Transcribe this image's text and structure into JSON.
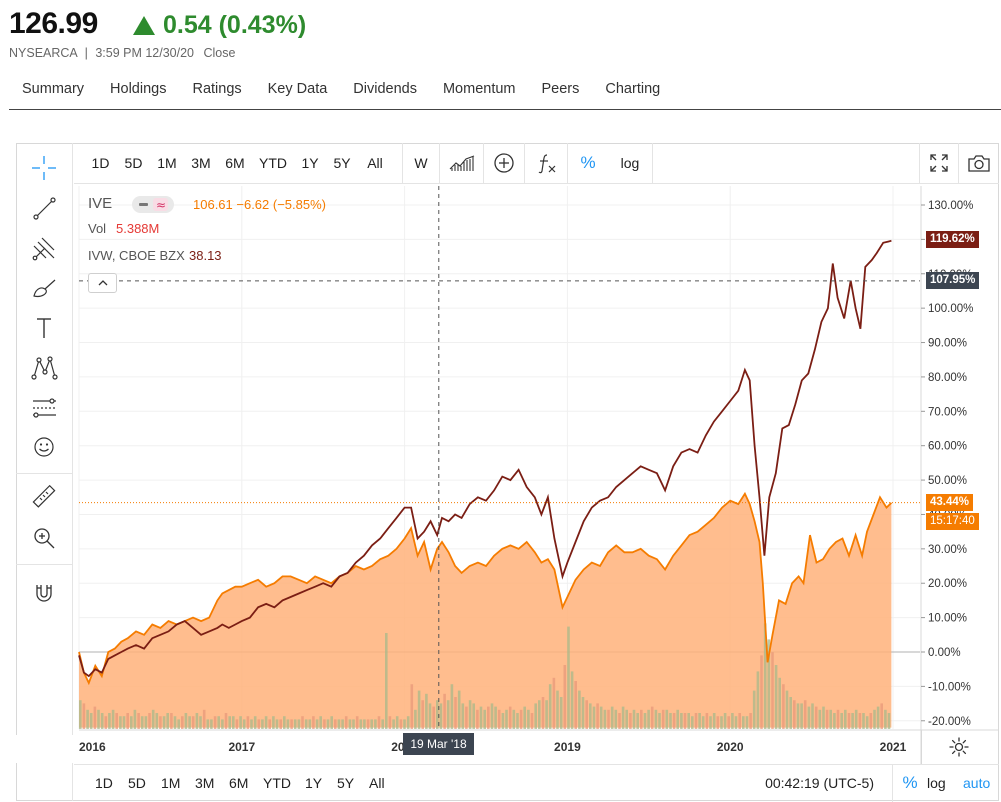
{
  "quote": {
    "price": "126.99",
    "change": "0.54 (0.43%)",
    "exchange": "NYSEARCA",
    "separator": "|",
    "time": "3:59 PM 12/30/20",
    "status": "Close"
  },
  "nav": {
    "tabs": [
      "Summary",
      "Holdings",
      "Ratings",
      "Key Data",
      "Dividends",
      "Momentum",
      "Peers",
      "Charting"
    ]
  },
  "toolbar": {
    "ranges": [
      "1D",
      "5D",
      "1M",
      "3M",
      "6M",
      "YTD",
      "1Y",
      "5Y",
      "All"
    ],
    "interval": "W",
    "percent": "%",
    "log": "log"
  },
  "bottom_toolbar": {
    "ranges": [
      "1D",
      "5D",
      "1M",
      "3M",
      "6M",
      "YTD",
      "1Y",
      "5Y",
      "All"
    ],
    "clock": "00:42:19 (UTC-5)",
    "percent": "%",
    "log": "log",
    "auto": "auto"
  },
  "legend": {
    "symbol": "IVE",
    "ohlc": "106.61 −6.62 (−5.85%)",
    "vol_label": "Vol",
    "vol_value": "5.388M",
    "compare_label": "IVW, CBOE BZX",
    "compare_value": "38.13"
  },
  "labels": {
    "ivw_last": "119.62%",
    "crosshair_y": "107.95%",
    "ive_last": "43.44%",
    "countdown": "15:17:40",
    "crosshair_x": "19 Mar '18"
  },
  "colors": {
    "ive": "#f57c00",
    "ive_fill": "#ffb27a",
    "ivw": "#7b1e14",
    "up": "#2e8b2e",
    "accent": "#2196f3",
    "crosshair_label": "#3c4551"
  },
  "chart_data": {
    "type": "area",
    "ylim": [
      -22,
      135
    ],
    "y_ticks": [
      "130.00%",
      "120.00%",
      "110.00%",
      "100.00%",
      "90.00%",
      "80.00%",
      "70.00%",
      "60.00%",
      "50.00%",
      "40.00%",
      "30.00%",
      "20.00%",
      "10.00%",
      "0.00%",
      "-10.00%",
      "-20.00%"
    ],
    "x_ticks": [
      {
        "t": 2016.0,
        "label": "2016"
      },
      {
        "t": 2017.0,
        "label": "2017"
      },
      {
        "t": 2018.0,
        "label": "2018"
      },
      {
        "t": 2019.0,
        "label": "2019"
      },
      {
        "t": 2020.0,
        "label": "2020"
      },
      {
        "t": 2021.0,
        "label": "2021"
      }
    ],
    "series": [
      {
        "name": "IVE",
        "style": "area",
        "points": [
          [
            2016.0,
            0
          ],
          [
            2016.03,
            -6
          ],
          [
            2016.06,
            -9
          ],
          [
            2016.1,
            -4
          ],
          [
            2016.14,
            -7
          ],
          [
            2016.18,
            0
          ],
          [
            2016.22,
            1
          ],
          [
            2016.26,
            3
          ],
          [
            2016.3,
            4
          ],
          [
            2016.35,
            6
          ],
          [
            2016.4,
            5
          ],
          [
            2016.45,
            8
          ],
          [
            2016.5,
            7
          ],
          [
            2016.55,
            9
          ],
          [
            2016.6,
            8
          ],
          [
            2016.65,
            9
          ],
          [
            2016.7,
            10
          ],
          [
            2016.75,
            9
          ],
          [
            2016.8,
            10
          ],
          [
            2016.85,
            15
          ],
          [
            2016.88,
            17
          ],
          [
            2016.92,
            18
          ],
          [
            2016.96,
            19
          ],
          [
            2017.0,
            19
          ],
          [
            2017.05,
            20
          ],
          [
            2017.1,
            21
          ],
          [
            2017.15,
            19
          ],
          [
            2017.2,
            20
          ],
          [
            2017.25,
            22
          ],
          [
            2017.3,
            22
          ],
          [
            2017.35,
            21
          ],
          [
            2017.4,
            20
          ],
          [
            2017.45,
            22
          ],
          [
            2017.5,
            21
          ],
          [
            2017.55,
            20
          ],
          [
            2017.6,
            22
          ],
          [
            2017.65,
            23
          ],
          [
            2017.7,
            25
          ],
          [
            2017.75,
            24
          ],
          [
            2017.8,
            25
          ],
          [
            2017.85,
            27
          ],
          [
            2017.9,
            28
          ],
          [
            2017.95,
            30
          ],
          [
            2018.0,
            33
          ],
          [
            2018.04,
            36
          ],
          [
            2018.08,
            28
          ],
          [
            2018.12,
            32
          ],
          [
            2018.16,
            24
          ],
          [
            2018.2,
            30
          ],
          [
            2018.23,
            32
          ],
          [
            2018.27,
            29
          ],
          [
            2018.31,
            25
          ],
          [
            2018.35,
            23
          ],
          [
            2018.4,
            25
          ],
          [
            2018.45,
            26
          ],
          [
            2018.5,
            25
          ],
          [
            2018.55,
            28
          ],
          [
            2018.6,
            30
          ],
          [
            2018.65,
            31
          ],
          [
            2018.7,
            30
          ],
          [
            2018.75,
            32
          ],
          [
            2018.8,
            29
          ],
          [
            2018.84,
            26
          ],
          [
            2018.88,
            27
          ],
          [
            2018.92,
            24
          ],
          [
            2018.97,
            13
          ],
          [
            2019.0,
            16
          ],
          [
            2019.05,
            21
          ],
          [
            2019.1,
            24
          ],
          [
            2019.15,
            26
          ],
          [
            2019.2,
            25
          ],
          [
            2019.25,
            29
          ],
          [
            2019.3,
            31
          ],
          [
            2019.35,
            29
          ],
          [
            2019.4,
            29
          ],
          [
            2019.45,
            30
          ],
          [
            2019.5,
            28
          ],
          [
            2019.55,
            27
          ],
          [
            2019.6,
            24
          ],
          [
            2019.65,
            28
          ],
          [
            2019.7,
            31
          ],
          [
            2019.75,
            34
          ],
          [
            2019.8,
            35
          ],
          [
            2019.85,
            37
          ],
          [
            2019.9,
            39
          ],
          [
            2019.95,
            42
          ],
          [
            2020.0,
            44
          ],
          [
            2020.05,
            43
          ],
          [
            2020.09,
            46
          ],
          [
            2020.12,
            43
          ],
          [
            2020.15,
            38
          ],
          [
            2020.18,
            32
          ],
          [
            2020.2,
            20
          ],
          [
            2020.23,
            -3
          ],
          [
            2020.26,
            5
          ],
          [
            2020.3,
            15
          ],
          [
            2020.34,
            14
          ],
          [
            2020.38,
            20
          ],
          [
            2020.42,
            22
          ],
          [
            2020.45,
            20
          ],
          [
            2020.49,
            34
          ],
          [
            2020.53,
            26
          ],
          [
            2020.57,
            27
          ],
          [
            2020.61,
            30
          ],
          [
            2020.65,
            32
          ],
          [
            2020.69,
            33
          ],
          [
            2020.73,
            28
          ],
          [
            2020.77,
            34
          ],
          [
            2020.81,
            28
          ],
          [
            2020.84,
            35
          ],
          [
            2020.88,
            40
          ],
          [
            2020.92,
            45
          ],
          [
            2020.96,
            42
          ],
          [
            2020.99,
            43.4
          ]
        ]
      },
      {
        "name": "IVW",
        "style": "line",
        "points": [
          [
            2016.0,
            -1
          ],
          [
            2016.03,
            -6
          ],
          [
            2016.06,
            -7
          ],
          [
            2016.1,
            -5
          ],
          [
            2016.14,
            -6
          ],
          [
            2016.18,
            -2
          ],
          [
            2016.22,
            -1
          ],
          [
            2016.26,
            0
          ],
          [
            2016.3,
            1
          ],
          [
            2016.35,
            2
          ],
          [
            2016.4,
            1
          ],
          [
            2016.45,
            4
          ],
          [
            2016.5,
            5
          ],
          [
            2016.55,
            6
          ],
          [
            2016.6,
            8
          ],
          [
            2016.65,
            9
          ],
          [
            2016.7,
            7
          ],
          [
            2016.75,
            5
          ],
          [
            2016.8,
            6
          ],
          [
            2016.85,
            7
          ],
          [
            2016.88,
            8
          ],
          [
            2016.92,
            7
          ],
          [
            2016.96,
            8
          ],
          [
            2017.0,
            9
          ],
          [
            2017.05,
            10
          ],
          [
            2017.1,
            13
          ],
          [
            2017.15,
            14
          ],
          [
            2017.2,
            13
          ],
          [
            2017.25,
            15
          ],
          [
            2017.3,
            16
          ],
          [
            2017.35,
            17
          ],
          [
            2017.4,
            18
          ],
          [
            2017.45,
            19
          ],
          [
            2017.5,
            20
          ],
          [
            2017.55,
            19
          ],
          [
            2017.6,
            22
          ],
          [
            2017.65,
            23
          ],
          [
            2017.7,
            26
          ],
          [
            2017.75,
            28
          ],
          [
            2017.8,
            31
          ],
          [
            2017.85,
            33
          ],
          [
            2017.9,
            36
          ],
          [
            2017.95,
            39
          ],
          [
            2018.0,
            42
          ],
          [
            2018.04,
            42
          ],
          [
            2018.08,
            33
          ],
          [
            2018.12,
            35
          ],
          [
            2018.16,
            38
          ],
          [
            2018.2,
            34
          ],
          [
            2018.23,
            39
          ],
          [
            2018.27,
            38
          ],
          [
            2018.31,
            40
          ],
          [
            2018.35,
            39
          ],
          [
            2018.4,
            43
          ],
          [
            2018.45,
            45
          ],
          [
            2018.5,
            44
          ],
          [
            2018.55,
            47
          ],
          [
            2018.6,
            51
          ],
          [
            2018.65,
            50
          ],
          [
            2018.7,
            53
          ],
          [
            2018.75,
            48
          ],
          [
            2018.8,
            45
          ],
          [
            2018.84,
            40
          ],
          [
            2018.88,
            45
          ],
          [
            2018.92,
            33
          ],
          [
            2018.97,
            22
          ],
          [
            2019.0,
            26
          ],
          [
            2019.05,
            32
          ],
          [
            2019.1,
            38
          ],
          [
            2019.15,
            42
          ],
          [
            2019.2,
            44
          ],
          [
            2019.25,
            45
          ],
          [
            2019.3,
            48
          ],
          [
            2019.35,
            50
          ],
          [
            2019.4,
            52
          ],
          [
            2019.45,
            54
          ],
          [
            2019.5,
            53
          ],
          [
            2019.55,
            52
          ],
          [
            2019.6,
            47
          ],
          [
            2019.65,
            54
          ],
          [
            2019.7,
            58
          ],
          [
            2019.75,
            59
          ],
          [
            2019.8,
            58
          ],
          [
            2019.85,
            63
          ],
          [
            2019.9,
            67
          ],
          [
            2019.95,
            70
          ],
          [
            2020.0,
            73
          ],
          [
            2020.05,
            76
          ],
          [
            2020.09,
            82
          ],
          [
            2020.12,
            79
          ],
          [
            2020.15,
            60
          ],
          [
            2020.18,
            45
          ],
          [
            2020.21,
            28
          ],
          [
            2020.24,
            45
          ],
          [
            2020.28,
            52
          ],
          [
            2020.32,
            65
          ],
          [
            2020.36,
            66
          ],
          [
            2020.4,
            72
          ],
          [
            2020.44,
            79
          ],
          [
            2020.48,
            81
          ],
          [
            2020.52,
            88
          ],
          [
            2020.56,
            96
          ],
          [
            2020.6,
            100
          ],
          [
            2020.63,
            113
          ],
          [
            2020.66,
            103
          ],
          [
            2020.7,
            97
          ],
          [
            2020.74,
            108
          ],
          [
            2020.77,
            100
          ],
          [
            2020.8,
            94
          ],
          [
            2020.83,
            112
          ],
          [
            2020.87,
            114
          ],
          [
            2020.9,
            116
          ],
          [
            2020.94,
            119
          ],
          [
            2020.99,
            119.6
          ]
        ]
      }
    ],
    "volume": [
      9,
      8,
      6,
      5,
      7,
      6,
      5,
      4,
      5,
      6,
      5,
      4,
      4,
      5,
      4,
      6,
      5,
      4,
      4,
      5,
      6,
      5,
      4,
      4,
      5,
      5,
      4,
      3,
      4,
      5,
      4,
      4,
      5,
      4,
      6,
      3,
      3,
      4,
      4,
      3,
      5,
      4,
      4,
      3,
      4,
      3,
      4,
      3,
      4,
      3,
      3,
      4,
      3,
      4,
      3,
      3,
      4,
      3,
      3,
      3,
      3,
      4,
      3,
      3,
      4,
      3,
      4,
      3,
      3,
      4,
      3,
      3,
      3,
      4,
      3,
      3,
      4,
      3,
      3,
      3,
      3,
      3,
      4,
      3,
      30,
      4,
      3,
      4,
      3,
      3,
      4,
      14,
      6,
      12,
      9,
      11,
      8,
      7,
      9,
      8,
      11,
      9,
      14,
      10,
      12,
      8,
      7,
      9,
      8,
      6,
      7,
      6,
      7,
      8,
      7,
      6,
      5,
      6,
      7,
      6,
      5,
      6,
      7,
      6,
      5,
      8,
      9,
      10,
      9,
      14,
      16,
      12,
      10,
      20,
      32,
      18,
      15,
      12,
      10,
      9,
      8,
      7,
      8,
      7,
      6,
      6,
      7,
      6,
      5,
      7,
      6,
      5,
      6,
      5,
      6,
      5,
      6,
      7,
      6,
      5,
      6,
      6,
      5,
      5,
      6,
      5,
      5,
      5,
      4,
      5,
      5,
      4,
      5,
      4,
      5,
      4,
      4,
      5,
      4,
      5,
      4,
      5,
      4,
      4,
      5,
      12,
      18,
      23,
      33,
      28,
      24,
      20,
      16,
      14,
      12,
      10,
      9,
      8,
      8,
      9,
      7,
      8,
      7,
      6,
      7,
      6,
      6,
      5,
      6,
      5,
      6,
      5,
      5,
      6,
      5,
      5,
      4,
      5,
      6,
      7,
      8,
      6,
      5
    ]
  }
}
